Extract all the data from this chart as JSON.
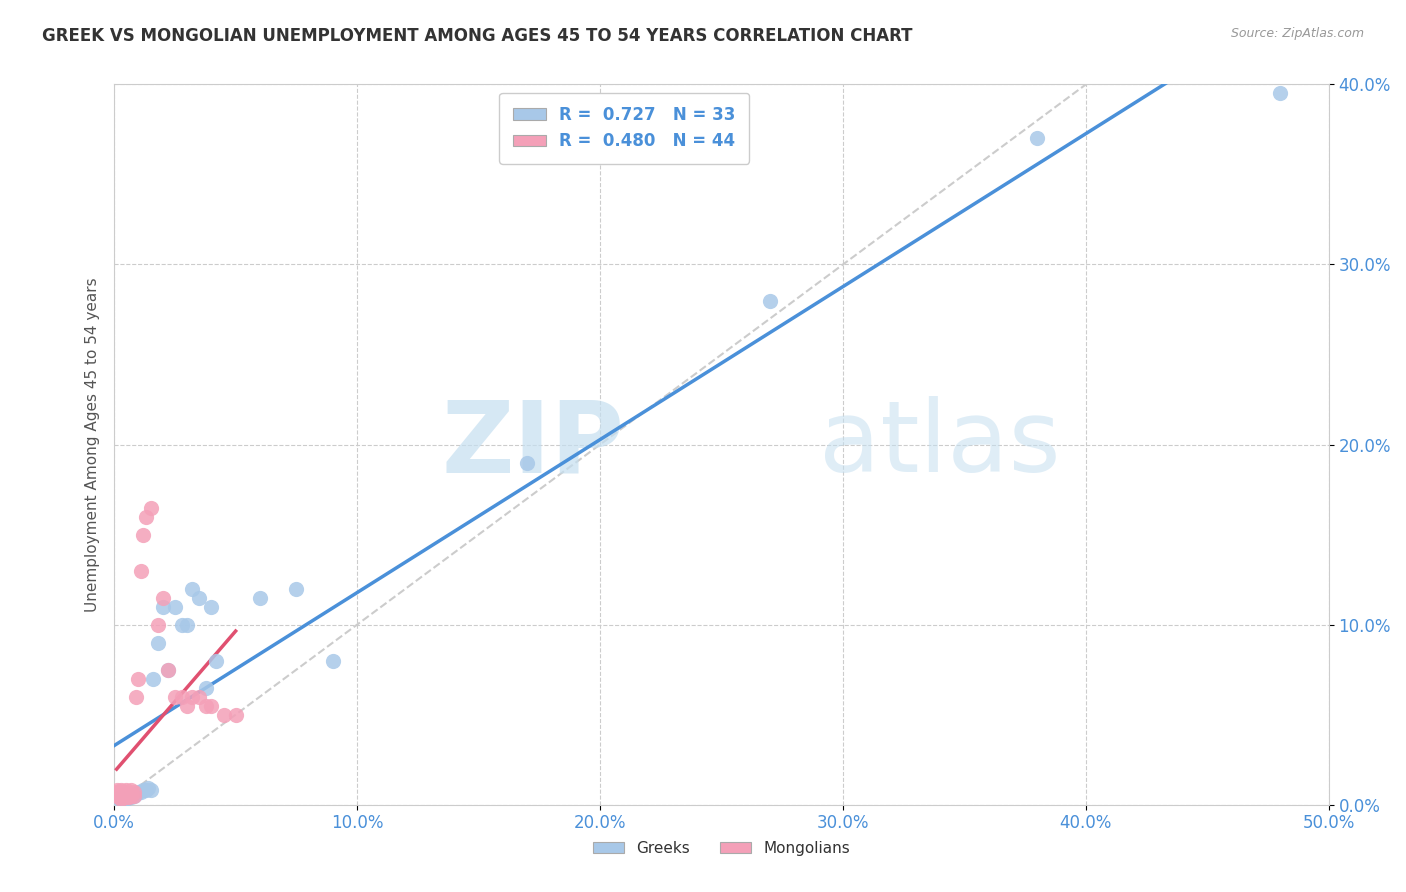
{
  "title": "GREEK VS MONGOLIAN UNEMPLOYMENT AMONG AGES 45 TO 54 YEARS CORRELATION CHART",
  "source": "Source: ZipAtlas.com",
  "ylabel_label": "Unemployment Among Ages 45 to 54 years",
  "xlim": [
    0,
    0.5
  ],
  "ylim": [
    0,
    0.4
  ],
  "watermark_zip": "ZIP",
  "watermark_atlas": "atlas",
  "greek_color": "#a8c8e8",
  "mongolian_color": "#f4a0b8",
  "greek_line_color": "#4a90d9",
  "mongolian_line_color": "#e05070",
  "background_color": "#ffffff",
  "grid_color": "#cccccc",
  "greeks_x": [
    0.002,
    0.003,
    0.004,
    0.005,
    0.006,
    0.007,
    0.008,
    0.009,
    0.01,
    0.011,
    0.012,
    0.013,
    0.014,
    0.015,
    0.016,
    0.018,
    0.02,
    0.022,
    0.025,
    0.028,
    0.03,
    0.032,
    0.035,
    0.038,
    0.04,
    0.042,
    0.06,
    0.075,
    0.09,
    0.17,
    0.27,
    0.38,
    0.48
  ],
  "greeks_y": [
    0.003,
    0.004,
    0.003,
    0.003,
    0.004,
    0.004,
    0.005,
    0.006,
    0.007,
    0.007,
    0.008,
    0.008,
    0.009,
    0.008,
    0.07,
    0.09,
    0.11,
    0.075,
    0.11,
    0.1,
    0.1,
    0.12,
    0.115,
    0.065,
    0.11,
    0.08,
    0.115,
    0.12,
    0.08,
    0.19,
    0.28,
    0.37,
    0.395
  ],
  "mongolians_x": [
    0.001,
    0.001,
    0.001,
    0.002,
    0.002,
    0.002,
    0.003,
    0.003,
    0.003,
    0.003,
    0.003,
    0.004,
    0.004,
    0.004,
    0.004,
    0.005,
    0.005,
    0.005,
    0.005,
    0.006,
    0.006,
    0.007,
    0.007,
    0.007,
    0.008,
    0.008,
    0.009,
    0.01,
    0.011,
    0.012,
    0.013,
    0.015,
    0.018,
    0.02,
    0.022,
    0.025,
    0.028,
    0.03,
    0.032,
    0.035,
    0.038,
    0.04,
    0.045,
    0.05
  ],
  "mongolians_y": [
    0.005,
    0.007,
    0.008,
    0.004,
    0.006,
    0.007,
    0.003,
    0.004,
    0.005,
    0.006,
    0.008,
    0.004,
    0.005,
    0.006,
    0.007,
    0.004,
    0.005,
    0.006,
    0.008,
    0.004,
    0.006,
    0.005,
    0.006,
    0.008,
    0.005,
    0.007,
    0.06,
    0.07,
    0.13,
    0.15,
    0.16,
    0.165,
    0.1,
    0.115,
    0.075,
    0.06,
    0.06,
    0.055,
    0.06,
    0.06,
    0.055,
    0.055,
    0.05,
    0.05
  ]
}
